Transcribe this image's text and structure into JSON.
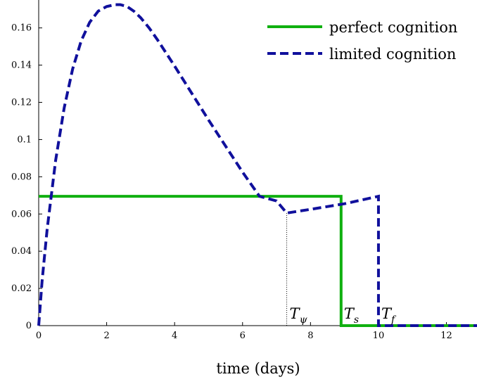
{
  "chart_data": {
    "type": "line",
    "title": "",
    "xlabel": "time (days)",
    "ylabel": "",
    "xlim": [
      0,
      12.9
    ],
    "ylim": [
      0,
      0.175
    ],
    "xticks": [
      0,
      2,
      4,
      6,
      8,
      10,
      12
    ],
    "xtick_labels": [
      "0",
      "2",
      "4",
      "6",
      "8",
      "10",
      "12"
    ],
    "yticks": [
      0,
      0.02,
      0.04,
      0.06,
      0.08,
      0.1,
      0.12,
      0.14,
      0.16
    ],
    "ytick_labels": [
      "0",
      "0.02",
      "0.04",
      "0.06",
      "0.08",
      "0.1",
      "0.12",
      "0.14",
      "0.16"
    ],
    "grid": false,
    "legend_position": "top-right",
    "series": [
      {
        "name": "perfect cognition",
        "color": "#10b010",
        "style": "solid",
        "x": [
          0,
          8.9,
          8.9,
          12.9
        ],
        "y": [
          0.0695,
          0.0695,
          0,
          0
        ]
      },
      {
        "name": "limited cognition",
        "color": "#10109c",
        "style": "dashed",
        "x": [
          0,
          0.1,
          0.25,
          0.5,
          0.75,
          1.0,
          1.25,
          1.5,
          1.75,
          2.0,
          2.25,
          2.4,
          2.6,
          2.8,
          3.0,
          3.25,
          3.5,
          3.75,
          4.0,
          4.5,
          5.0,
          5.5,
          6.0,
          6.5,
          7.0,
          7.3,
          8.0,
          9.0,
          10.0,
          10.0,
          11.0,
          12.0,
          12.9
        ],
        "y": [
          0,
          0.024,
          0.052,
          0.089,
          0.117,
          0.138,
          0.153,
          0.163,
          0.169,
          0.1715,
          0.1725,
          0.1725,
          0.1715,
          0.169,
          0.1655,
          0.16,
          0.1535,
          0.1465,
          0.1395,
          0.125,
          0.1105,
          0.0965,
          0.0825,
          0.0695,
          0.067,
          0.0605,
          0.0625,
          0.0655,
          0.0695,
          0,
          0,
          0,
          0
        ]
      }
    ],
    "annotations": [
      {
        "id": "T_psi",
        "base": "T",
        "sub": "ψ",
        "x": 7.3
      },
      {
        "id": "T_s",
        "base": "T",
        "sub": "s",
        "x": 8.9
      },
      {
        "id": "T_f",
        "base": "T",
        "sub": "f",
        "x": 10.0
      }
    ]
  }
}
